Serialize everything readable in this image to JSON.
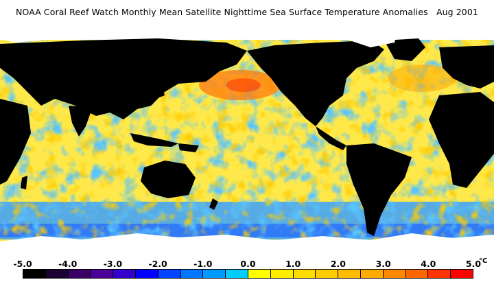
{
  "title": "NOAA Coral Reef Watch Monthly Mean Satellite Nighttime Sea Surface Temperature Anomalies   Aug 2001",
  "legend": {
    "unit": "°C",
    "ticks": [
      "-5.0",
      "-4.0",
      "-3.0",
      "-2.0",
      "-1.0",
      "0.0",
      "1.0",
      "2.0",
      "3.0",
      "4.0",
      "5.0"
    ],
    "colors": [
      "#000000",
      "#1c0033",
      "#3a0066",
      "#4b0099",
      "#3300cc",
      "#0000ff",
      "#0044ff",
      "#0077ff",
      "#0099ff",
      "#00ccff",
      "#ffff00",
      "#ffee00",
      "#ffdd00",
      "#ffcc00",
      "#ffbb00",
      "#ffaa00",
      "#ff8800",
      "#ff6600",
      "#ff3300",
      "#ff0000"
    ]
  },
  "colors": {
    "land": "#000000",
    "ice": "#ffffff",
    "ocean_base": "#ffee22"
  }
}
